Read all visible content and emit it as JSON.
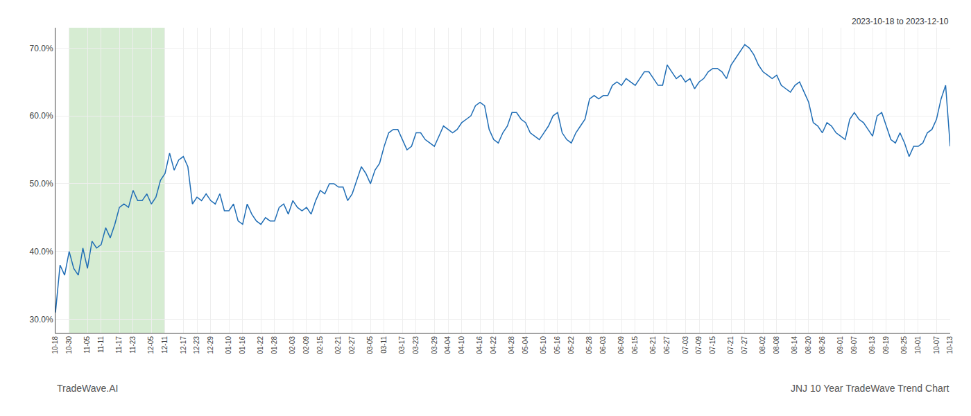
{
  "chart_data": {
    "type": "line",
    "title": "JNJ 10 Year TradeWave Trend Chart",
    "subtitle": "2023-10-18 to 2023-12-10",
    "annotations": [
      "TradeWave.AI"
    ],
    "categories": [
      "10-18",
      null,
      null,
      "10-30",
      null,
      null,
      null,
      "11-05",
      null,
      null,
      "11-11",
      null,
      null,
      null,
      "11-17",
      null,
      null,
      "11-23",
      null,
      null,
      null,
      "12-05",
      null,
      null,
      "12-11",
      null,
      null,
      null,
      "12-17",
      null,
      null,
      "12-23",
      null,
      null,
      "12-29",
      null,
      null,
      null,
      "01-10",
      null,
      null,
      "01-16",
      null,
      null,
      null,
      "01-22",
      null,
      null,
      "01-28",
      null,
      null,
      null,
      "02-03",
      null,
      null,
      "02-09",
      null,
      null,
      "02-15",
      null,
      null,
      null,
      "02-21",
      null,
      null,
      "02-27",
      null,
      null,
      null,
      "03-05",
      null,
      null,
      "03-11",
      null,
      null,
      null,
      "03-17",
      null,
      null,
      "03-23",
      null,
      null,
      null,
      "03-29",
      null,
      null,
      "04-04",
      null,
      null,
      "04-10",
      null,
      null,
      null,
      "04-16",
      null,
      null,
      "04-22",
      null,
      null,
      null,
      "04-28",
      null,
      null,
      "05-04",
      null,
      null,
      null,
      "05-10",
      null,
      null,
      "05-16",
      null,
      null,
      "05-22",
      null,
      null,
      null,
      "05-28",
      null,
      null,
      "06-03",
      null,
      null,
      null,
      "06-09",
      null,
      null,
      "06-15",
      null,
      null,
      null,
      "06-21",
      null,
      null,
      "06-27",
      null,
      null,
      null,
      "07-03",
      null,
      null,
      "07-09",
      null,
      null,
      "07-15",
      null,
      null,
      null,
      "07-21",
      null,
      null,
      "07-27",
      null,
      null,
      null,
      "08-02",
      null,
      null,
      "08-08",
      null,
      null,
      null,
      "08-14",
      null,
      null,
      "08-20",
      null,
      null,
      "08-26",
      null,
      null,
      null,
      "09-01",
      null,
      null,
      "09-07",
      null,
      null,
      null,
      "09-13",
      null,
      null,
      "09-19",
      null,
      null,
      null,
      "09-25",
      null,
      null,
      "10-01",
      null,
      null,
      null,
      "10-07",
      null,
      null,
      "10-13"
    ],
    "values": [
      31.0,
      38.0,
      36.5,
      40.0,
      37.5,
      36.5,
      40.5,
      37.5,
      41.5,
      40.5,
      41.0,
      43.5,
      42.0,
      44.0,
      46.5,
      47.0,
      46.5,
      49.0,
      47.5,
      47.5,
      48.5,
      47.0,
      48.0,
      50.5,
      51.5,
      54.5,
      52.0,
      53.5,
      54.0,
      52.5,
      47.0,
      48.0,
      47.5,
      48.5,
      47.5,
      47.0,
      48.5,
      46.0,
      46.0,
      47.0,
      44.5,
      44.0,
      47.0,
      45.5,
      44.5,
      44.0,
      45.0,
      44.5,
      44.5,
      46.5,
      47.0,
      45.5,
      47.5,
      46.5,
      46.0,
      46.5,
      45.5,
      47.5,
      49.0,
      48.5,
      50.0,
      50.0,
      49.5,
      49.5,
      47.5,
      48.5,
      50.5,
      52.5,
      51.5,
      50.0,
      52.0,
      53.0,
      55.5,
      57.5,
      58.0,
      58.0,
      56.5,
      55.0,
      55.5,
      57.5,
      57.5,
      56.5,
      56.0,
      55.5,
      57.0,
      58.5,
      58.0,
      57.5,
      58.0,
      59.0,
      59.5,
      60.0,
      61.5,
      62.0,
      61.5,
      58.0,
      56.5,
      56.0,
      57.5,
      58.5,
      60.5,
      60.5,
      59.5,
      59.0,
      57.5,
      57.0,
      56.5,
      57.5,
      58.5,
      60.0,
      60.5,
      57.5,
      56.5,
      56.0,
      57.5,
      58.5,
      59.5,
      62.5,
      63.0,
      62.5,
      63.0,
      63.0,
      64.5,
      65.0,
      64.5,
      65.5,
      65.0,
      64.5,
      65.5,
      66.5,
      66.5,
      65.5,
      64.5,
      64.5,
      67.5,
      66.5,
      65.5,
      66.0,
      65.0,
      65.5,
      64.0,
      65.0,
      65.5,
      66.5,
      67.0,
      67.0,
      66.5,
      65.5,
      67.5,
      68.5,
      69.5,
      70.5,
      70.0,
      69.0,
      67.5,
      66.5,
      66.0,
      65.5,
      66.0,
      64.5,
      64.0,
      63.5,
      64.5,
      65.0,
      63.5,
      62.0,
      59.0,
      58.5,
      57.5,
      59.0,
      58.5,
      57.5,
      57.0,
      56.5,
      59.5,
      60.5,
      59.5,
      59.0,
      58.0,
      57.0,
      60.0,
      60.5,
      58.5,
      56.5,
      56.0,
      57.5,
      56.0,
      54.0,
      55.5,
      55.5,
      56.0,
      57.5,
      58.0,
      59.5,
      62.5,
      64.5,
      55.5
    ],
    "color": "#1f6db5",
    "ylim": [
      28.0,
      73.0
    ],
    "yticks": [
      {
        "value": 30.0,
        "label": "30.0%"
      },
      {
        "value": 40.0,
        "label": "40.0%"
      },
      {
        "value": 50.0,
        "label": "50.0%"
      },
      {
        "value": 60.0,
        "label": "60.0%"
      },
      {
        "value": 70.0,
        "label": "70.0%"
      }
    ],
    "grid": true,
    "highlight": {
      "from": "10-30",
      "to": "12-11",
      "color": "#d6ecd2"
    }
  }
}
